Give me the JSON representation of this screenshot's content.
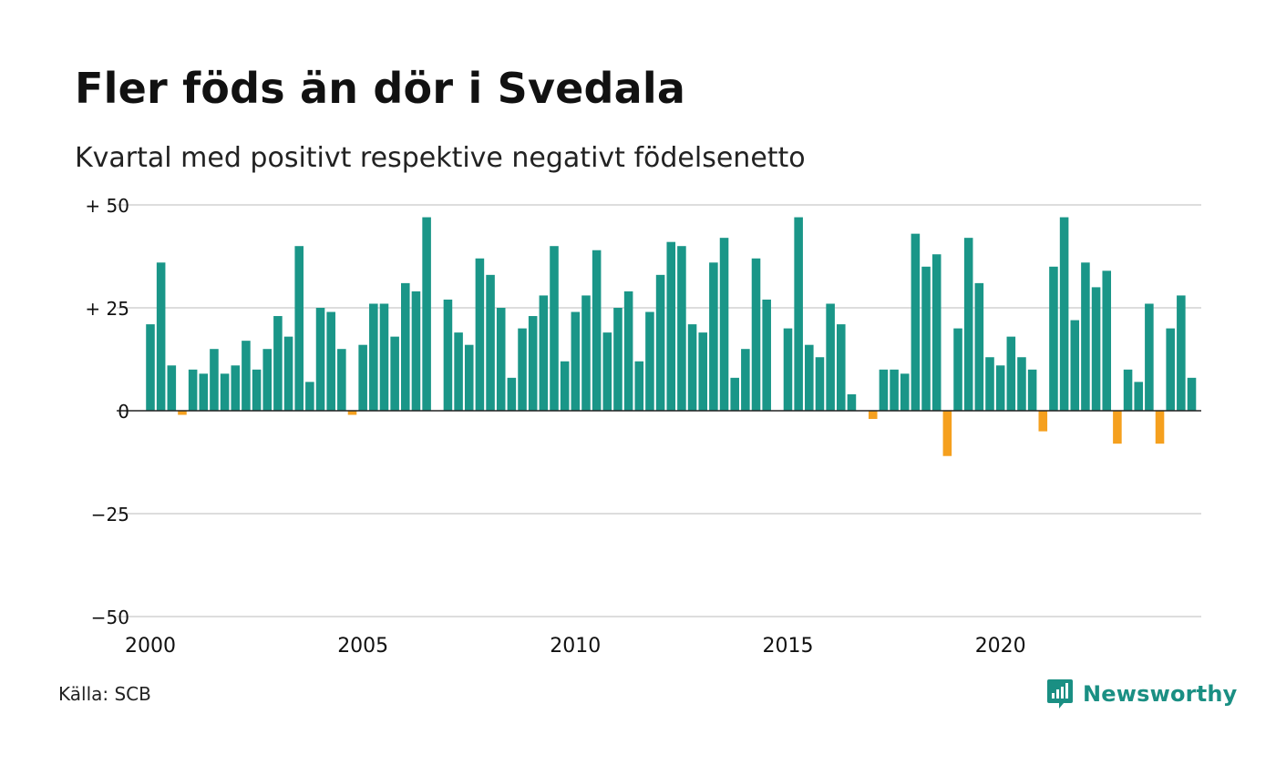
{
  "title": "Fler föds än dör i Svedala",
  "subtitle": "Kvartal med positivt respektive negativt födelsenetto",
  "source": "Källa: SCB",
  "brand": "Newsworthy",
  "colors": {
    "positive": "#1a9688",
    "negative": "#f5a01e",
    "grid": "#dddddd",
    "brand": "#1a8f83"
  },
  "icons": {
    "brand": "newsworthy-logo-icon"
  },
  "chart_data": {
    "type": "bar",
    "title": "Fler föds än dör i Svedala",
    "subtitle": "Kvartal med positivt respektive negativt födelsenetto",
    "xlabel": "",
    "ylabel": "",
    "ylim": [
      -50,
      50
    ],
    "yticks": [
      {
        "value": 50,
        "label": "+ 50"
      },
      {
        "value": 25,
        "label": "+ 25"
      },
      {
        "value": 0,
        "label": "0"
      },
      {
        "value": -25,
        "label": "−25"
      },
      {
        "value": -50,
        "label": "−50"
      }
    ],
    "xticks": [
      {
        "year": 2000,
        "label": "2000"
      },
      {
        "year": 2005,
        "label": "2005"
      },
      {
        "year": 2010,
        "label": "2010"
      },
      {
        "year": 2015,
        "label": "2015"
      },
      {
        "year": 2020,
        "label": "2020"
      }
    ],
    "start_year": 2000,
    "grid": true,
    "legend": "none",
    "values": [
      21,
      36,
      11,
      -1,
      10,
      9,
      15,
      9,
      11,
      17,
      10,
      15,
      23,
      18,
      40,
      7,
      25,
      24,
      15,
      -1,
      16,
      26,
      26,
      18,
      31,
      29,
      47,
      0,
      27,
      19,
      16,
      37,
      33,
      25,
      8,
      20,
      23,
      28,
      40,
      12,
      24,
      28,
      39,
      19,
      25,
      29,
      12,
      24,
      33,
      41,
      40,
      21,
      19,
      36,
      42,
      8,
      15,
      37,
      27,
      0,
      20,
      47,
      16,
      13,
      26,
      21,
      4,
      0,
      -2,
      10,
      10,
      9,
      43,
      35,
      38,
      -11,
      20,
      42,
      31,
      13,
      11,
      18,
      13,
      10,
      -5,
      35,
      47,
      22,
      36,
      30,
      34,
      -8,
      10,
      7,
      26,
      -8,
      20,
      28,
      8
    ]
  }
}
